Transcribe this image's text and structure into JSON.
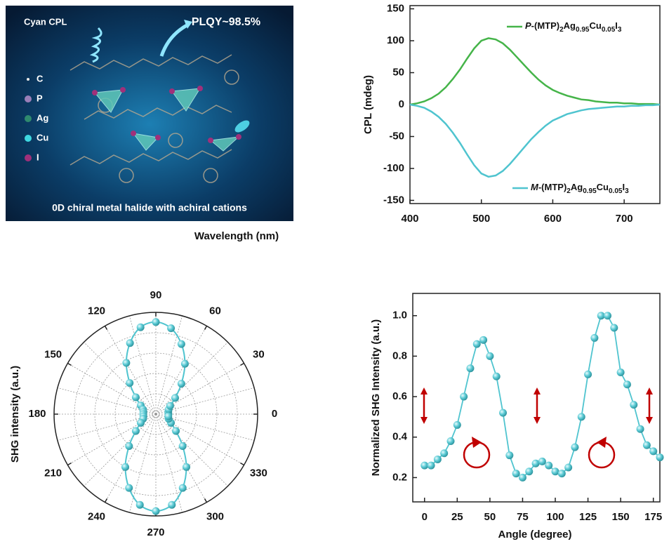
{
  "illustration": {
    "annotations": [
      "Cyan CPL",
      "PLQY~98.5%"
    ],
    "legend": [
      "C",
      "P",
      "Ag",
      "Cu",
      "I"
    ],
    "legend_colors": [
      "#e8e8e8",
      "#9a7fb8",
      "#2f8a6e",
      "#3fd8e0",
      "#a0307a"
    ],
    "caption": "0D chiral metal halide with achiral cations"
  },
  "chart_data": [
    {
      "type": "line",
      "xlabel": "Wavelength (nm)",
      "ylabel": "CPL (mdeg)",
      "x": [
        400,
        410,
        420,
        430,
        440,
        450,
        460,
        470,
        480,
        490,
        500,
        510,
        520,
        530,
        540,
        550,
        560,
        570,
        580,
        590,
        600,
        610,
        620,
        630,
        640,
        650,
        660,
        670,
        680,
        690,
        700,
        710,
        720,
        730,
        740,
        750
      ],
      "series": [
        {
          "name": "P-(MTP)2Ag0.95Cu0.05I3",
          "color": "#45b449",
          "values": [
            0,
            2,
            5,
            10,
            17,
            27,
            40,
            55,
            72,
            88,
            100,
            104,
            102,
            96,
            86,
            74,
            62,
            50,
            39,
            30,
            23,
            18,
            14,
            11,
            8,
            7,
            5,
            4,
            3,
            3,
            2,
            2,
            1,
            1,
            1,
            0
          ]
        },
        {
          "name": "M-(MTP)2Ag0.95Cu0.05I3",
          "color": "#4fc4cf",
          "values": [
            0,
            -2,
            -5,
            -11,
            -19,
            -30,
            -44,
            -60,
            -78,
            -95,
            -108,
            -113,
            -111,
            -104,
            -93,
            -80,
            -67,
            -54,
            -43,
            -33,
            -25,
            -20,
            -15,
            -12,
            -9,
            -7,
            -6,
            -5,
            -4,
            -3,
            -3,
            -2,
            -2,
            -1,
            -1,
            0
          ]
        }
      ],
      "xlim": [
        400,
        750
      ],
      "xticks": [
        400,
        500,
        600,
        700
      ],
      "ylim": [
        -155,
        155
      ],
      "yticks": [
        -150,
        -100,
        -50,
        0,
        50,
        100,
        150
      ]
    },
    {
      "type": "polar",
      "ylabel": "SHG intensity (a.u.)",
      "color": "#4fc4cf",
      "grid": true,
      "theta": [
        0,
        10,
        20,
        30,
        40,
        50,
        60,
        70,
        80,
        90,
        100,
        110,
        120,
        130,
        140,
        150,
        160,
        170,
        180,
        190,
        200,
        210,
        220,
        230,
        240,
        250,
        260,
        270,
        280,
        290,
        300,
        310,
        320,
        330,
        340,
        350
      ],
      "values": [
        0.13,
        0.13,
        0.14,
        0.17,
        0.26,
        0.41,
        0.6,
        0.77,
        0.9,
        0.95,
        0.91,
        0.78,
        0.61,
        0.42,
        0.27,
        0.18,
        0.14,
        0.13,
        0.13,
        0.13,
        0.14,
        0.18,
        0.27,
        0.43,
        0.63,
        0.81,
        0.95,
        1.0,
        0.95,
        0.81,
        0.63,
        0.43,
        0.27,
        0.18,
        0.14,
        0.13
      ],
      "rlim": [
        0,
        1.05
      ],
      "thetaticks": [
        0,
        30,
        60,
        90,
        120,
        150,
        180,
        210,
        240,
        270,
        300,
        330
      ]
    },
    {
      "type": "line",
      "markers": true,
      "color": "#4fc4cf",
      "xlabel": "Angle (degree)",
      "ylabel": "Normalized SHG Intensity (a.u.)",
      "x": [
        0,
        5,
        10,
        15,
        20,
        25,
        30,
        35,
        40,
        45,
        50,
        55,
        60,
        65,
        70,
        75,
        80,
        85,
        90,
        95,
        100,
        105,
        110,
        115,
        120,
        125,
        130,
        135,
        140,
        145,
        150,
        155,
        160,
        165,
        170,
        175,
        180
      ],
      "values": [
        0.26,
        0.26,
        0.29,
        0.32,
        0.38,
        0.46,
        0.6,
        0.74,
        0.86,
        0.88,
        0.8,
        0.7,
        0.52,
        0.31,
        0.22,
        0.2,
        0.23,
        0.27,
        0.28,
        0.26,
        0.23,
        0.22,
        0.25,
        0.35,
        0.5,
        0.71,
        0.89,
        1.0,
        1.0,
        0.94,
        0.72,
        0.66,
        0.56,
        0.44,
        0.36,
        0.33,
        0.3
      ],
      "xlim": [
        -9,
        180
      ],
      "xticks": [
        0,
        25,
        50,
        75,
        100,
        125,
        150,
        175
      ],
      "ylim": [
        0.08,
        1.11
      ],
      "yticks": [
        0.2,
        0.4,
        0.6,
        0.8,
        {
          "value": 1,
          "label": "1.0"
        }
      ]
    }
  ]
}
